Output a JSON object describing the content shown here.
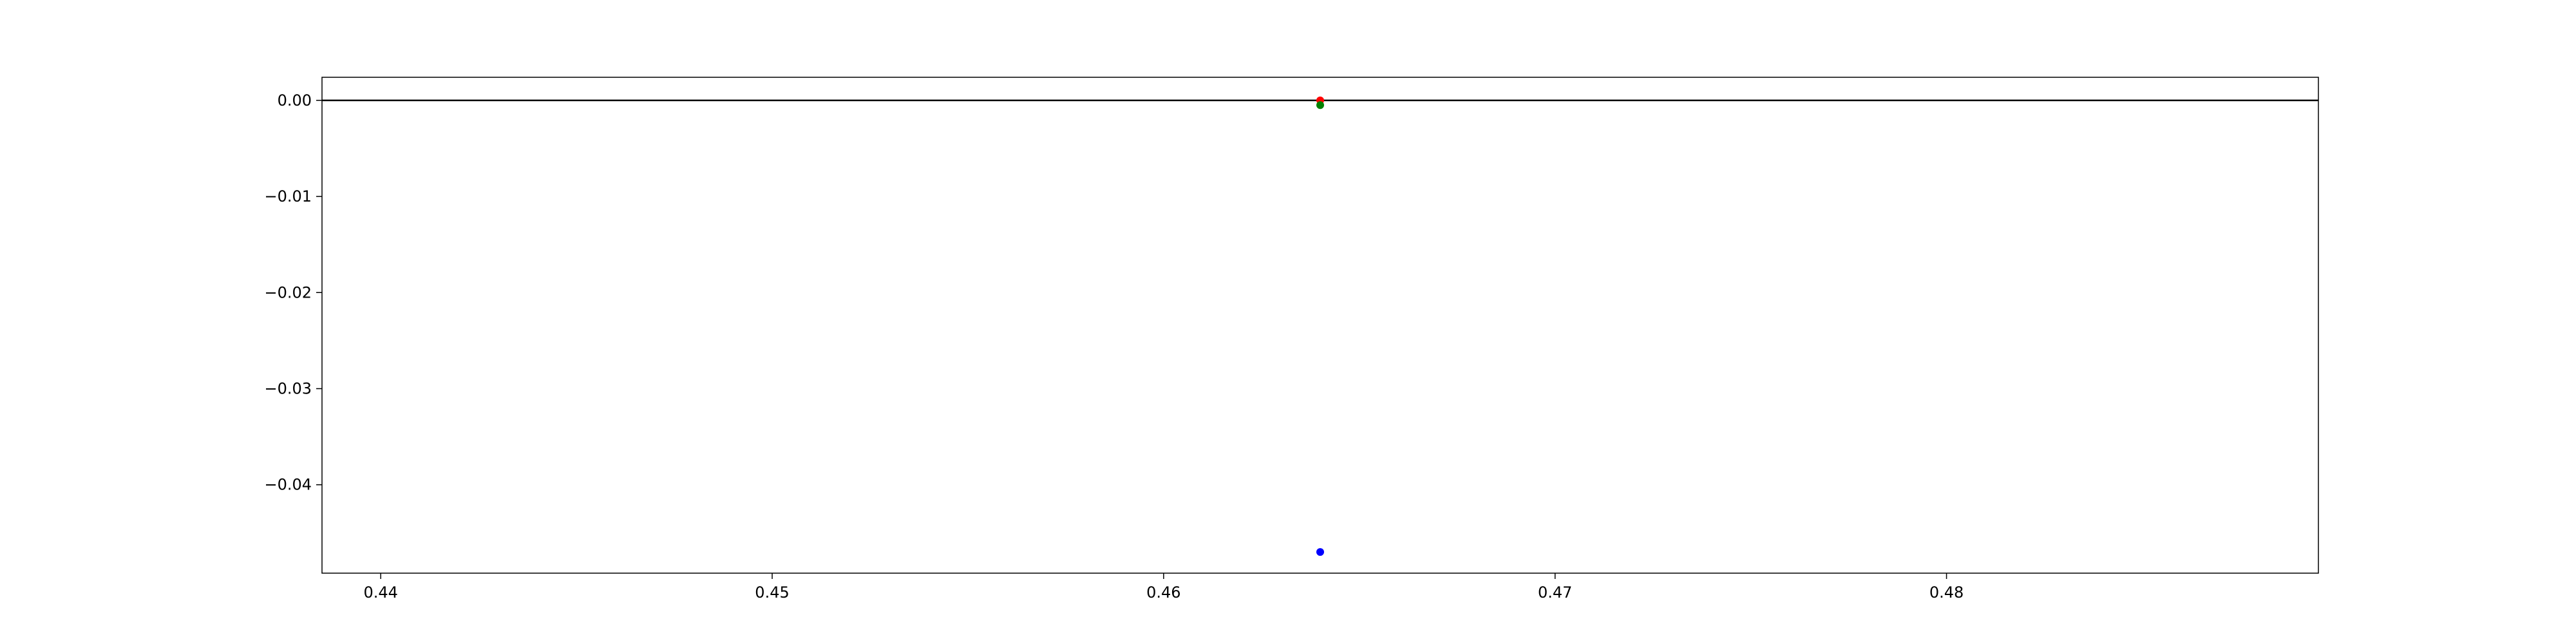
{
  "chart_data": {
    "type": "scatter",
    "title": "",
    "xlabel": "",
    "ylabel": "",
    "xlim": [
      0.4385,
      0.4895
    ],
    "ylim": [
      -0.0492,
      0.0024
    ],
    "x_ticks": [
      {
        "value": 0.44,
        "label": "0.44"
      },
      {
        "value": 0.45,
        "label": "0.45"
      },
      {
        "value": 0.46,
        "label": "0.46"
      },
      {
        "value": 0.47,
        "label": "0.47"
      },
      {
        "value": 0.48,
        "label": "0.48"
      }
    ],
    "y_ticks": [
      {
        "value": 0.0,
        "label": "0.00"
      },
      {
        "value": -0.01,
        "label": "−0.01"
      },
      {
        "value": -0.02,
        "label": "−0.02"
      },
      {
        "value": -0.03,
        "label": "−0.03"
      },
      {
        "value": -0.04,
        "label": "−0.04"
      }
    ],
    "reference_line": {
      "y": 0.0,
      "color": "#000000"
    },
    "grid": false,
    "series": [
      {
        "color": "#0000ff",
        "points": [
          {
            "x": 0.464,
            "y": -0.047
          }
        ]
      },
      {
        "color": "#ff0000",
        "points": [
          {
            "x": 0.464,
            "y": 0.0
          }
        ]
      },
      {
        "color": "#008000",
        "points": [
          {
            "x": 0.464,
            "y": -0.0005
          }
        ]
      }
    ]
  }
}
